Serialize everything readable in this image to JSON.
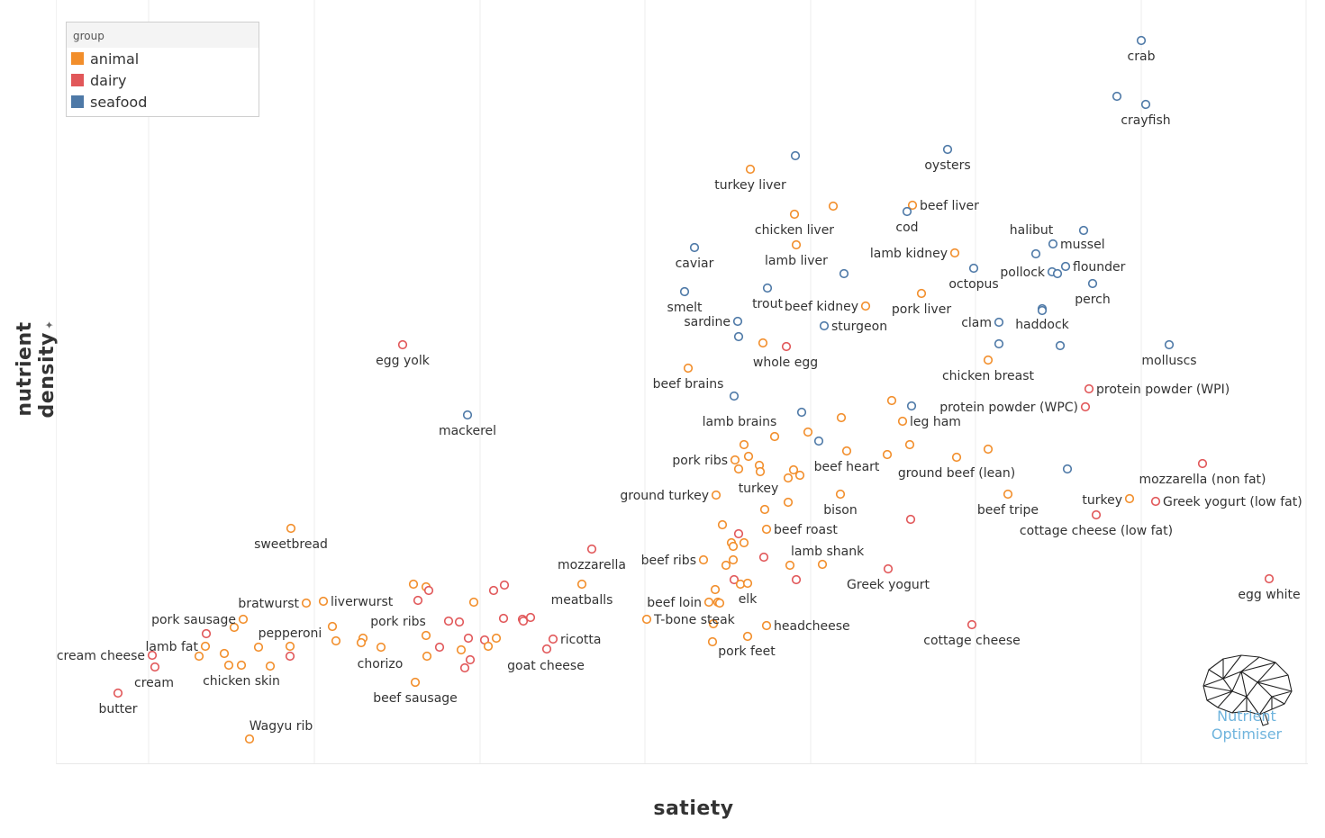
{
  "x_title": "satiety",
  "y_title": "nutrient density",
  "y_title_icon": "pin-icon",
  "legend": {
    "title": "group",
    "items": [
      {
        "key": "animal",
        "label": "animal",
        "color": "#f28e2b"
      },
      {
        "key": "dairy",
        "label": "dairy",
        "color": "#e15759"
      },
      {
        "key": "seafood",
        "label": "seafood",
        "color": "#4e79a7"
      }
    ]
  },
  "logo": {
    "line1": "Nutrient",
    "line2": "Optimiser"
  },
  "chart_data": {
    "type": "scatter",
    "title": "",
    "xlabel": "satiety",
    "ylabel": "nutrient density",
    "grid": "vertical",
    "legend_position": "top-left",
    "series": [
      {
        "name": "animal",
        "color": "#f28e2b"
      },
      {
        "name": "dairy",
        "color": "#e15759"
      },
      {
        "name": "seafood",
        "color": "#4e79a7"
      }
    ],
    "points": [
      {
        "label": "crab",
        "group": "seafood",
        "x": 1267,
        "y": 45
      },
      {
        "label": "",
        "group": "seafood",
        "x": 1240,
        "y": 107
      },
      {
        "label": "crayfish",
        "group": "seafood",
        "x": 1272,
        "y": 116
      },
      {
        "label": "oysters",
        "group": "seafood",
        "x": 1052,
        "y": 166
      },
      {
        "label": "",
        "group": "seafood",
        "x": 883,
        "y": 173
      },
      {
        "label": "turkey liver",
        "group": "animal",
        "x": 833,
        "y": 188
      },
      {
        "label": "",
        "group": "animal",
        "x": 925,
        "y": 229
      },
      {
        "label": "beef liver",
        "group": "animal",
        "x": 1013,
        "y": 228
      },
      {
        "label": "cod",
        "group": "seafood",
        "x": 1007,
        "y": 235
      },
      {
        "label": "chicken liver",
        "group": "animal",
        "x": 882,
        "y": 238
      },
      {
        "label": "halibut",
        "group": "seafood",
        "x": 1150,
        "y": 282
      },
      {
        "label": "",
        "group": "seafood",
        "x": 1203,
        "y": 256
      },
      {
        "label": "mussel",
        "group": "seafood",
        "x": 1169,
        "y": 271
      },
      {
        "label": "caviar",
        "group": "seafood",
        "x": 771,
        "y": 275
      },
      {
        "label": "lamb liver",
        "group": "animal",
        "x": 884,
        "y": 272
      },
      {
        "label": "lamb kidney",
        "group": "animal",
        "x": 1060,
        "y": 281
      },
      {
        "label": "pollock",
        "group": "seafood",
        "x": 1168,
        "y": 302
      },
      {
        "label": "",
        "group": "seafood",
        "x": 1174,
        "y": 304
      },
      {
        "label": "flounder",
        "group": "seafood",
        "x": 1183,
        "y": 296
      },
      {
        "label": "octopus",
        "group": "seafood",
        "x": 1081,
        "y": 298
      },
      {
        "label": "",
        "group": "seafood",
        "x": 937,
        "y": 304
      },
      {
        "label": "perch",
        "group": "seafood",
        "x": 1213,
        "y": 315
      },
      {
        "label": "trout",
        "group": "seafood",
        "x": 852,
        "y": 320
      },
      {
        "label": "smelt",
        "group": "seafood",
        "x": 760,
        "y": 324
      },
      {
        "label": "pork liver",
        "group": "animal",
        "x": 1023,
        "y": 326
      },
      {
        "label": "beef kidney",
        "group": "animal",
        "x": 961,
        "y": 340
      },
      {
        "label": "haddock",
        "group": "seafood",
        "x": 1157,
        "y": 343
      },
      {
        "label": "",
        "group": "seafood",
        "x": 1157,
        "y": 345
      },
      {
        "label": "sardine",
        "group": "seafood",
        "x": 819,
        "y": 357
      },
      {
        "label": "clam",
        "group": "seafood",
        "x": 1109,
        "y": 358
      },
      {
        "label": "sturgeon",
        "group": "seafood",
        "x": 915,
        "y": 362
      },
      {
        "label": "",
        "group": "seafood",
        "x": 820,
        "y": 374
      },
      {
        "label": "whole egg",
        "group": "dairy",
        "x": 873,
        "y": 385
      },
      {
        "label": "",
        "group": "animal",
        "x": 847,
        "y": 381
      },
      {
        "label": "egg yolk",
        "group": "dairy",
        "x": 447,
        "y": 383
      },
      {
        "label": "",
        "group": "seafood",
        "x": 1109,
        "y": 382
      },
      {
        "label": "",
        "group": "seafood",
        "x": 1177,
        "y": 384
      },
      {
        "label": "molluscs",
        "group": "seafood",
        "x": 1298,
        "y": 383
      },
      {
        "label": "chicken breast",
        "group": "animal",
        "x": 1097,
        "y": 400
      },
      {
        "label": "beef brains",
        "group": "animal",
        "x": 764,
        "y": 409
      },
      {
        "label": "protein powder (WPI)",
        "group": "dairy",
        "x": 1209,
        "y": 432
      },
      {
        "label": "lamb brains",
        "group": "seafood",
        "x": 815,
        "y": 440
      },
      {
        "label": "",
        "group": "animal",
        "x": 990,
        "y": 445
      },
      {
        "label": "",
        "group": "seafood",
        "x": 1012,
        "y": 451
      },
      {
        "label": "protein powder (WPC)",
        "group": "dairy",
        "x": 1205,
        "y": 452
      },
      {
        "label": "",
        "group": "seafood",
        "x": 890,
        "y": 458
      },
      {
        "label": "mackerel",
        "group": "seafood",
        "x": 519,
        "y": 461
      },
      {
        "label": "",
        "group": "animal",
        "x": 934,
        "y": 464
      },
      {
        "label": "leg ham",
        "group": "animal",
        "x": 1002,
        "y": 468
      },
      {
        "label": "",
        "group": "animal",
        "x": 897,
        "y": 480
      },
      {
        "label": "",
        "group": "animal",
        "x": 860,
        "y": 485
      },
      {
        "label": "",
        "group": "seafood",
        "x": 909,
        "y": 490
      },
      {
        "label": "",
        "group": "animal",
        "x": 826,
        "y": 494
      },
      {
        "label": "",
        "group": "animal",
        "x": 1010,
        "y": 494
      },
      {
        "label": "",
        "group": "animal",
        "x": 1097,
        "y": 499
      },
      {
        "label": "beef heart",
        "group": "animal",
        "x": 940,
        "y": 501
      },
      {
        "label": "",
        "group": "animal",
        "x": 985,
        "y": 505
      },
      {
        "label": "",
        "group": "animal",
        "x": 831,
        "y": 507
      },
      {
        "label": "ground beef (lean)",
        "group": "animal",
        "x": 1062,
        "y": 508
      },
      {
        "label": "pork ribs",
        "group": "animal",
        "x": 816,
        "y": 511
      },
      {
        "label": "",
        "group": "animal",
        "x": 843,
        "y": 517
      },
      {
        "label": "mozzarella (non fat)",
        "group": "dairy",
        "x": 1335,
        "y": 515
      },
      {
        "label": "",
        "group": "animal",
        "x": 820,
        "y": 521
      },
      {
        "label": "",
        "group": "animal",
        "x": 881,
        "y": 522
      },
      {
        "label": "",
        "group": "animal",
        "x": 844,
        "y": 524
      },
      {
        "label": "",
        "group": "seafood",
        "x": 1185,
        "y": 521
      },
      {
        "label": "turkey",
        "group": "animal",
        "x": 888,
        "y": 528
      },
      {
        "label": "",
        "group": "animal",
        "x": 875,
        "y": 531
      },
      {
        "label": "bison",
        "group": "animal",
        "x": 933,
        "y": 549
      },
      {
        "label": "ground turkey",
        "group": "animal",
        "x": 795,
        "y": 550
      },
      {
        "label": "beef tripe",
        "group": "animal",
        "x": 1119,
        "y": 549
      },
      {
        "label": "turkey",
        "group": "animal",
        "x": 1254,
        "y": 554
      },
      {
        "label": "Greek yogurt (low fat)",
        "group": "dairy",
        "x": 1283,
        "y": 557
      },
      {
        "label": "",
        "group": "animal",
        "x": 875,
        "y": 558
      },
      {
        "label": "",
        "group": "animal",
        "x": 849,
        "y": 566
      },
      {
        "label": "cottage cheese (low fat)",
        "group": "dairy",
        "x": 1217,
        "y": 572
      },
      {
        "label": "",
        "group": "dairy",
        "x": 1011,
        "y": 577
      },
      {
        "label": "",
        "group": "animal",
        "x": 802,
        "y": 583
      },
      {
        "label": "beef roast",
        "group": "animal",
        "x": 851,
        "y": 588
      },
      {
        "label": "sweetbread",
        "group": "animal",
        "x": 323,
        "y": 587
      },
      {
        "label": "",
        "group": "dairy",
        "x": 820,
        "y": 593
      },
      {
        "label": "",
        "group": "animal",
        "x": 812,
        "y": 603
      },
      {
        "label": "",
        "group": "animal",
        "x": 826,
        "y": 603
      },
      {
        "label": "",
        "group": "animal",
        "x": 814,
        "y": 607
      },
      {
        "label": "mozzarella",
        "group": "dairy",
        "x": 657,
        "y": 610
      },
      {
        "label": "lamb shank",
        "group": "dairy",
        "x": 848,
        "y": 619
      },
      {
        "label": "beef ribs",
        "group": "animal",
        "x": 781,
        "y": 622
      },
      {
        "label": "",
        "group": "animal",
        "x": 814,
        "y": 622
      },
      {
        "label": "",
        "group": "animal",
        "x": 806,
        "y": 628
      },
      {
        "label": "",
        "group": "animal",
        "x": 877,
        "y": 628
      },
      {
        "label": "",
        "group": "animal",
        "x": 913,
        "y": 627
      },
      {
        "label": "Greek yogurt",
        "group": "dairy",
        "x": 986,
        "y": 632
      },
      {
        "label": "",
        "group": "dairy",
        "x": 884,
        "y": 644
      },
      {
        "label": "",
        "group": "dairy",
        "x": 815,
        "y": 644
      },
      {
        "label": "",
        "group": "animal",
        "x": 822,
        "y": 649
      },
      {
        "label": "elk",
        "group": "animal",
        "x": 830,
        "y": 648
      },
      {
        "label": "egg white",
        "group": "dairy",
        "x": 1409,
        "y": 643
      },
      {
        "label": "meatballs",
        "group": "animal",
        "x": 646,
        "y": 649
      },
      {
        "label": "",
        "group": "animal",
        "x": 459,
        "y": 649
      },
      {
        "label": "",
        "group": "animal",
        "x": 473,
        "y": 652
      },
      {
        "label": "",
        "group": "dairy",
        "x": 560,
        "y": 650
      },
      {
        "label": "",
        "group": "dairy",
        "x": 476,
        "y": 656
      },
      {
        "label": "",
        "group": "animal",
        "x": 794,
        "y": 655
      },
      {
        "label": "",
        "group": "dairy",
        "x": 548,
        "y": 656
      },
      {
        "label": "bratwurst",
        "group": "animal",
        "x": 340,
        "y": 670
      },
      {
        "label": "liverwurst",
        "group": "animal",
        "x": 359,
        "y": 668
      },
      {
        "label": "",
        "group": "dairy",
        "x": 464,
        "y": 667
      },
      {
        "label": "",
        "group": "animal",
        "x": 526,
        "y": 669
      },
      {
        "label": "beef loin",
        "group": "animal",
        "x": 787,
        "y": 669
      },
      {
        "label": "",
        "group": "animal",
        "x": 797,
        "y": 669
      },
      {
        "label": "",
        "group": "animal",
        "x": 799,
        "y": 670
      },
      {
        "label": "pork sausage",
        "group": "animal",
        "x": 270,
        "y": 688
      },
      {
        "label": "pork ribs",
        "group": "dairy",
        "x": 498,
        "y": 690
      },
      {
        "label": "",
        "group": "dairy",
        "x": 510,
        "y": 691
      },
      {
        "label": "",
        "group": "dairy",
        "x": 559,
        "y": 687
      },
      {
        "label": "",
        "group": "dairy",
        "x": 580,
        "y": 688
      },
      {
        "label": "",
        "group": "dairy",
        "x": 589,
        "y": 686
      },
      {
        "label": "",
        "group": "dairy",
        "x": 581,
        "y": 690
      },
      {
        "label": "T-bone steak",
        "group": "animal",
        "x": 718,
        "y": 688
      },
      {
        "label": "",
        "group": "animal",
        "x": 792,
        "y": 693
      },
      {
        "label": "headcheese",
        "group": "animal",
        "x": 851,
        "y": 695
      },
      {
        "label": "cottage cheese",
        "group": "dairy",
        "x": 1079,
        "y": 694
      },
      {
        "label": "",
        "group": "animal",
        "x": 260,
        "y": 697
      },
      {
        "label": "",
        "group": "animal",
        "x": 369,
        "y": 696
      },
      {
        "label": "pepperoni",
        "group": "animal",
        "x": 322,
        "y": 718
      },
      {
        "label": "",
        "group": "dairy",
        "x": 229,
        "y": 704
      },
      {
        "label": "",
        "group": "animal",
        "x": 473,
        "y": 706
      },
      {
        "label": "",
        "group": "dairy",
        "x": 520,
        "y": 709
      },
      {
        "label": "",
        "group": "animal",
        "x": 551,
        "y": 709
      },
      {
        "label": "",
        "group": "animal",
        "x": 830,
        "y": 707
      },
      {
        "label": "ricotta",
        "group": "dairy",
        "x": 614,
        "y": 710
      },
      {
        "label": "",
        "group": "animal",
        "x": 373,
        "y": 712
      },
      {
        "label": "",
        "group": "animal",
        "x": 403,
        "y": 709
      },
      {
        "label": "",
        "group": "animal",
        "x": 401,
        "y": 714
      },
      {
        "label": "",
        "group": "dairy",
        "x": 538,
        "y": 711
      },
      {
        "label": "pork feet",
        "group": "animal",
        "x": 791,
        "y": 713
      },
      {
        "label": "lamb fat",
        "group": "animal",
        "x": 228,
        "y": 718
      },
      {
        "label": "",
        "group": "animal",
        "x": 287,
        "y": 719
      },
      {
        "label": "",
        "group": "animal",
        "x": 423,
        "y": 719
      },
      {
        "label": "",
        "group": "dairy",
        "x": 488,
        "y": 719
      },
      {
        "label": "",
        "group": "animal",
        "x": 542,
        "y": 718
      },
      {
        "label": "",
        "group": "animal",
        "x": 512,
        "y": 722
      },
      {
        "label": "",
        "group": "dairy",
        "x": 607,
        "y": 721
      },
      {
        "label": "",
        "group": "animal",
        "x": 249,
        "y": 726
      },
      {
        "label": "",
        "group": "animal",
        "x": 221,
        "y": 729
      },
      {
        "label": "",
        "group": "dairy",
        "x": 322,
        "y": 729
      },
      {
        "label": "chorizo",
        "group": "animal",
        "x": 474,
        "y": 729
      },
      {
        "label": "cream cheese",
        "group": "dairy",
        "x": 169,
        "y": 728
      },
      {
        "label": "goat cheese",
        "group": "dairy",
        "x": 522,
        "y": 733
      },
      {
        "label": "",
        "group": "dairy",
        "x": 516,
        "y": 742
      },
      {
        "label": "cream",
        "group": "dairy",
        "x": 172,
        "y": 741
      },
      {
        "label": "",
        "group": "animal",
        "x": 254,
        "y": 739
      },
      {
        "label": "chicken skin",
        "group": "animal",
        "x": 268,
        "y": 739
      },
      {
        "label": "",
        "group": "animal",
        "x": 300,
        "y": 740
      },
      {
        "label": "beef sausage",
        "group": "animal",
        "x": 461,
        "y": 758
      },
      {
        "label": "butter",
        "group": "dairy",
        "x": 131,
        "y": 770
      },
      {
        "label": "Wagyu rib",
        "group": "animal",
        "x": 277,
        "y": 821
      }
    ]
  }
}
